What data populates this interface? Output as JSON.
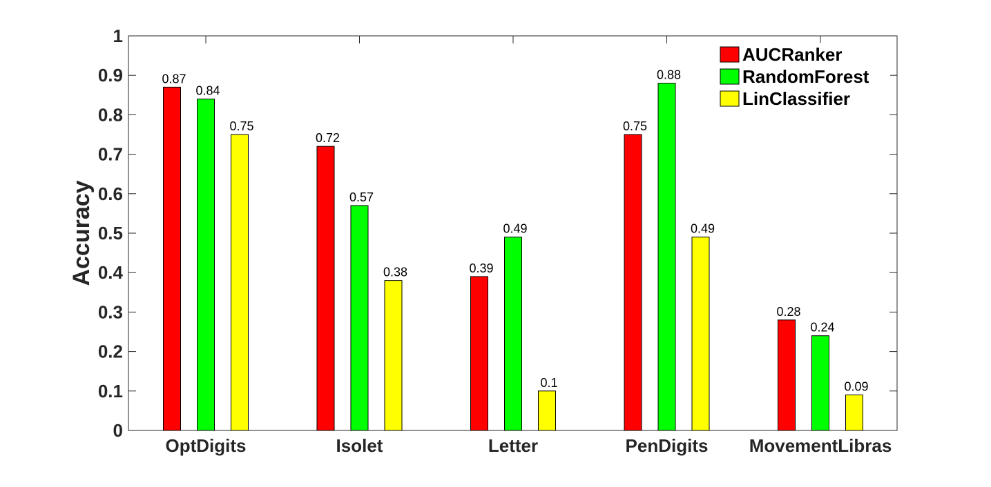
{
  "chart_data": {
    "type": "bar",
    "title": "",
    "xlabel": "",
    "ylabel": "Accuracy",
    "ylim": [
      0,
      1
    ],
    "yticks": [
      "0",
      "0.1",
      "0.2",
      "0.3",
      "0.4",
      "0.5",
      "0.6",
      "0.7",
      "0.8",
      "0.9",
      "1"
    ],
    "categories": [
      "OptDigits",
      "Isolet",
      "Letter",
      "PenDigits",
      "MovementLibras"
    ],
    "series": [
      {
        "name": "AUCRanker",
        "color": "#ff0000",
        "values": [
          0.87,
          0.72,
          0.39,
          0.75,
          0.28
        ],
        "labels": [
          "0.87",
          "0.72",
          "0.39",
          "0.75",
          "0.28"
        ]
      },
      {
        "name": "RandomForest",
        "color": "#00ff00",
        "values": [
          0.84,
          0.57,
          0.49,
          0.88,
          0.24
        ],
        "labels": [
          "0.84",
          "0.57",
          "0.49",
          "0.88",
          "0.24"
        ]
      },
      {
        "name": "LinClassifier",
        "color": "#ffff00",
        "values": [
          0.75,
          0.38,
          0.1,
          0.49,
          0.09
        ],
        "labels": [
          "0.75",
          "0.38",
          "0.1",
          "0.49",
          "0.09"
        ]
      }
    ],
    "grid": false,
    "legend_position": "top-right"
  }
}
